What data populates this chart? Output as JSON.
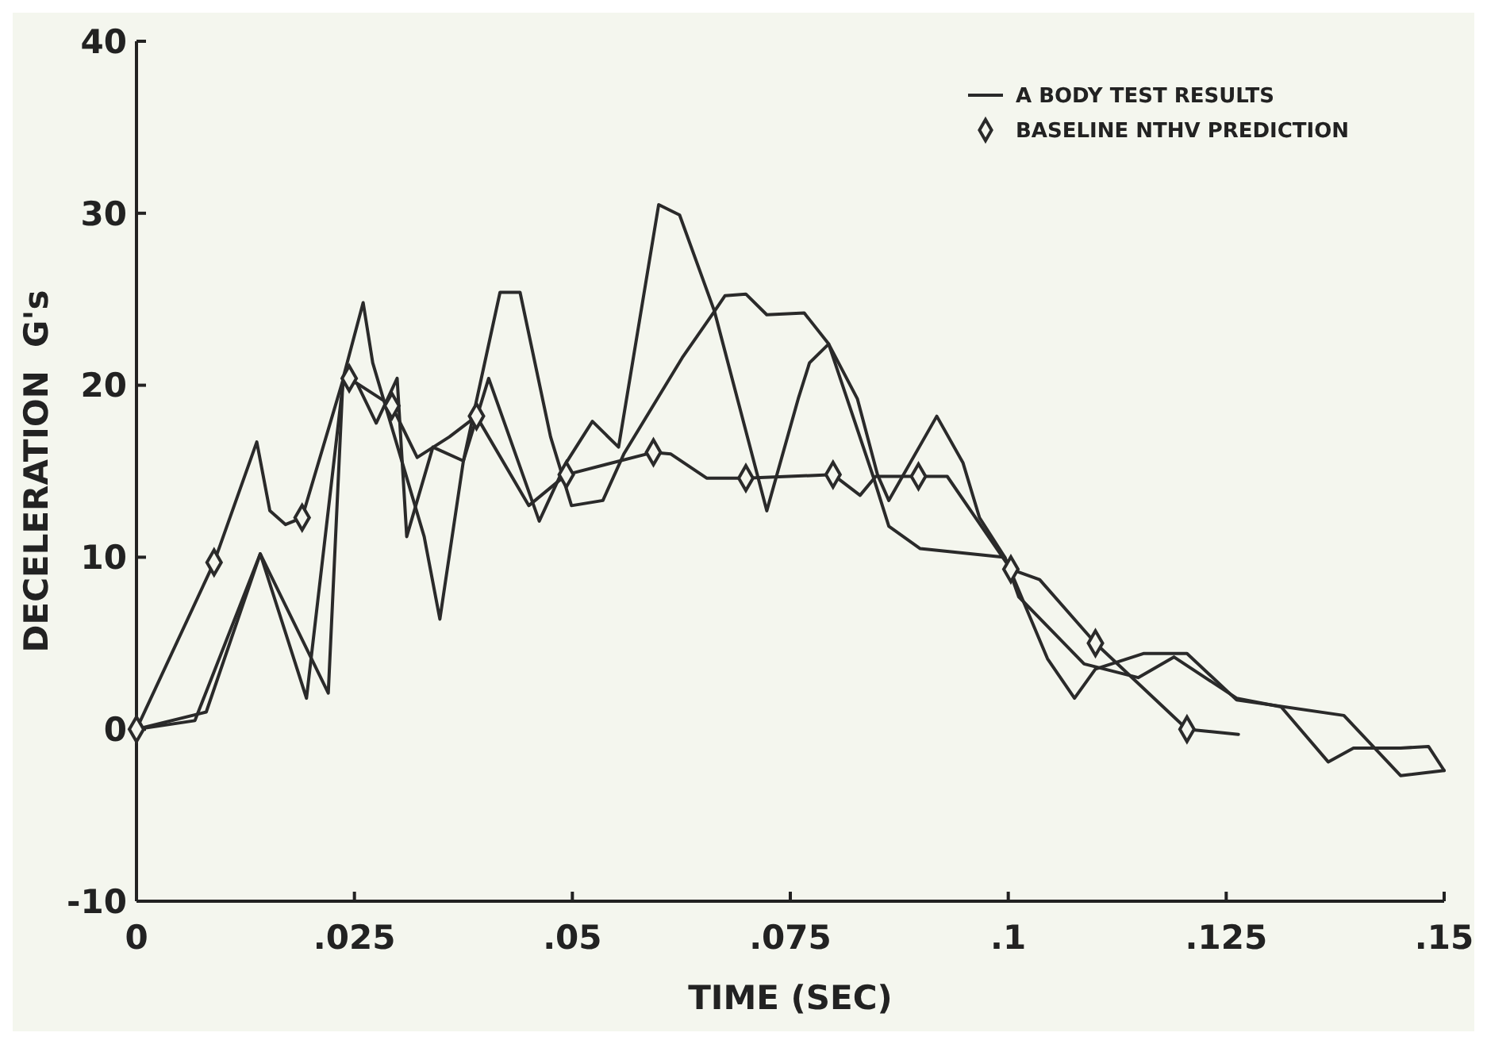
{
  "chart_data": {
    "type": "line",
    "xlabel": "TIME (SEC)",
    "ylabel": "DECELERATION  G's",
    "xlim": [
      0,
      0.15
    ],
    "ylim": [
      -10,
      40
    ],
    "xticks": [
      {
        "value": 0,
        "label": "0"
      },
      {
        "value": 0.025,
        "label": ".025"
      },
      {
        "value": 0.05,
        "label": ".05"
      },
      {
        "value": 0.075,
        "label": ".075"
      },
      {
        "value": 0.1,
        "label": ".1"
      },
      {
        "value": 0.125,
        "label": ".125"
      },
      {
        "value": 0.15,
        "label": ".15"
      }
    ],
    "yticks": [
      -10,
      0,
      10,
      20,
      30,
      40
    ],
    "grid": false,
    "legend": "top right",
    "line_style": "solid",
    "marker": "none",
    "series": [
      {
        "name": "A BODY TEST RESULTS",
        "color": "#2a2a2a",
        "x": [
          0,
          0.0067,
          0.0142,
          0.0195,
          0.0238,
          0.026,
          0.0271,
          0.033,
          0.0348,
          0.0375,
          0.0404,
          0.0462,
          0.0493,
          0.0523,
          0.0553,
          0.0599,
          0.0623,
          0.0663,
          0.0675,
          0.0699,
          0.0723,
          0.0766,
          0.0794,
          0.0827,
          0.085,
          0.0863,
          0.0918,
          0.0948,
          0.0967,
          0.0996,
          0.1045,
          0.1076,
          0.11,
          0.1155,
          0.1205,
          0.1262,
          0.1385,
          0.145,
          0.15
        ],
        "values": [
          0,
          0.5,
          10.2,
          1.8,
          20.6,
          24.8,
          21.3,
          11.2,
          6.4,
          15.6,
          20.4,
          12.1,
          15.5,
          17.9,
          16.4,
          30.5,
          29.9,
          24.3,
          25.2,
          25.3,
          24.1,
          24.2,
          22.4,
          19.2,
          14.8,
          13.3,
          18.2,
          15.5,
          12.3,
          10,
          4.1,
          1.8,
          3.5,
          4.4,
          4.4,
          1.7,
          0.8,
          -2.7,
          -2.4
        ]
      },
      {
        "color": "#2a2a2a",
        "x": [
          0,
          0.008,
          0.0142,
          0.022,
          0.0237,
          0.0253,
          0.0275,
          0.0299,
          0.031,
          0.034,
          0.0375,
          0.0417,
          0.044,
          0.0475,
          0.0499,
          0.0535,
          0.0559,
          0.0626,
          0.0663,
          0.0723,
          0.0759,
          0.0772,
          0.0794,
          0.0845,
          0.0863,
          0.0899,
          0.0996,
          0.1012,
          0.1087,
          0.1149,
          0.119,
          0.1262,
          0.1313,
          0.1367,
          0.1396,
          0.145,
          0.1482,
          0.15
        ],
        "values": [
          0,
          1,
          10.2,
          2.1,
          20.5,
          20.1,
          17.8,
          20.4,
          11.2,
          16.4,
          15.6,
          25.4,
          25.4,
          17,
          13,
          13.3,
          16,
          21.6,
          24.3,
          12.7,
          19.2,
          21.3,
          22.4,
          14.7,
          11.8,
          10.5,
          10,
          7.7,
          3.8,
          3,
          4.2,
          1.8,
          1.3,
          -1.9,
          -1.1,
          -1.1,
          -1,
          -2.4
        ]
      },
      {
        "color": "#2a2a2a",
        "x": [
          0,
          0.0089,
          0.0138,
          0.0153,
          0.0171,
          0.019,
          0.0238,
          0.0244,
          0.0293,
          0.0322,
          0.0359,
          0.039,
          0.045,
          0.0493,
          0.0593,
          0.0613,
          0.0654,
          0.0699,
          0.0799,
          0.083,
          0.0848,
          0.0897,
          0.093,
          0.1003,
          0.1036,
          0.11,
          0.1205,
          0.1264
        ],
        "values": [
          0,
          9.7,
          16.7,
          12.7,
          11.9,
          12.3,
          20.5,
          20.4,
          18.8,
          15.8,
          17,
          18.2,
          13,
          14.8,
          16.1,
          16,
          14.6,
          14.6,
          14.8,
          13.6,
          14.7,
          14.7,
          14.7,
          9.3,
          8.7,
          5,
          0,
          -0.3
        ]
      },
      {
        "type": "scatter",
        "name": "BASELINE NTHV PREDICTION",
        "color": "#2a2a2a",
        "marker": "diamond",
        "x": [
          0,
          0.0089,
          0.019,
          0.0244,
          0.0293,
          0.039,
          0.0493,
          0.0593,
          0.0699,
          0.0799,
          0.0897,
          0.1003,
          0.11,
          0.1205
        ],
        "values": [
          0,
          9.7,
          12.3,
          20.4,
          18.8,
          18.2,
          14.8,
          16.1,
          14.6,
          14.8,
          14.7,
          9.3,
          5,
          0
        ]
      }
    ]
  }
}
